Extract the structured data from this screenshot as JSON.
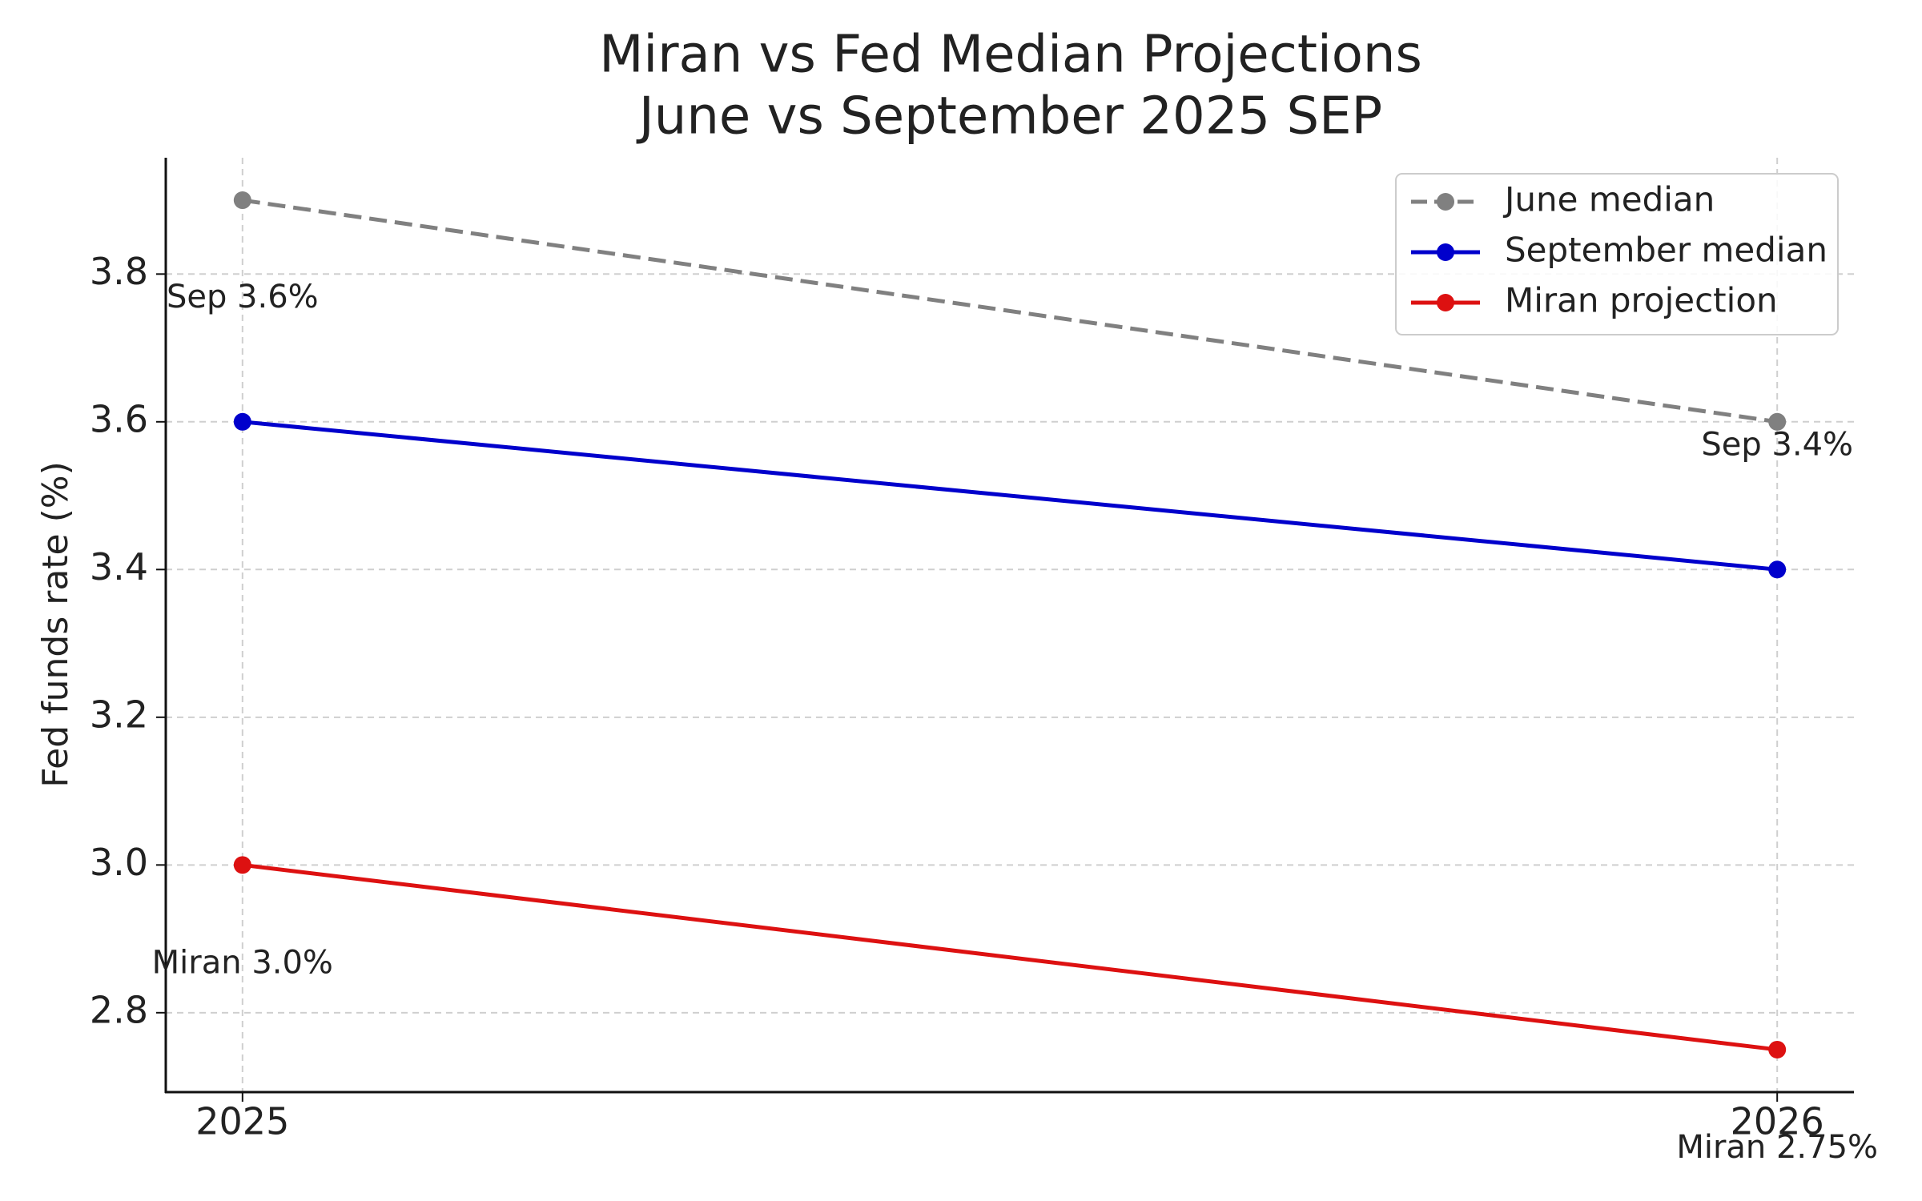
{
  "chart_data": {
    "type": "line",
    "title": "Miran vs Fed Median Projections",
    "subtitle": "June vs September 2025 SEP",
    "y_label": "Fed funds rate (%)",
    "x": [
      2025,
      2026
    ],
    "xlim": [
      2024.95,
      2026.05
    ],
    "xticks": [
      2025,
      2026
    ],
    "ylim": [
      2.6925,
      3.9575
    ],
    "yticks": [
      2.8,
      3.0,
      3.2,
      3.4,
      3.6,
      3.8
    ],
    "yticks_labels": [
      "2.8",
      "3.0",
      "3.2",
      "3.4",
      "3.6",
      "3.8"
    ],
    "grid": true,
    "legend": "upper right",
    "series": [
      {
        "name": "June median",
        "color": "#808080",
        "linestyle": "dashed",
        "values": [
          3.9,
          3.6
        ]
      },
      {
        "name": "September median",
        "color": "#0000cc",
        "linestyle": "solid",
        "values": [
          3.6,
          3.4
        ],
        "value_labels": [
          "Sep 3.6%",
          "Sep 3.4%"
        ]
      },
      {
        "name": "Miran projection",
        "color": "#dd1111",
        "linestyle": "solid",
        "values": [
          3.0,
          2.75
        ],
        "value_labels": [
          "Miran 3.0%",
          "Miran 2.75%"
        ]
      }
    ]
  }
}
